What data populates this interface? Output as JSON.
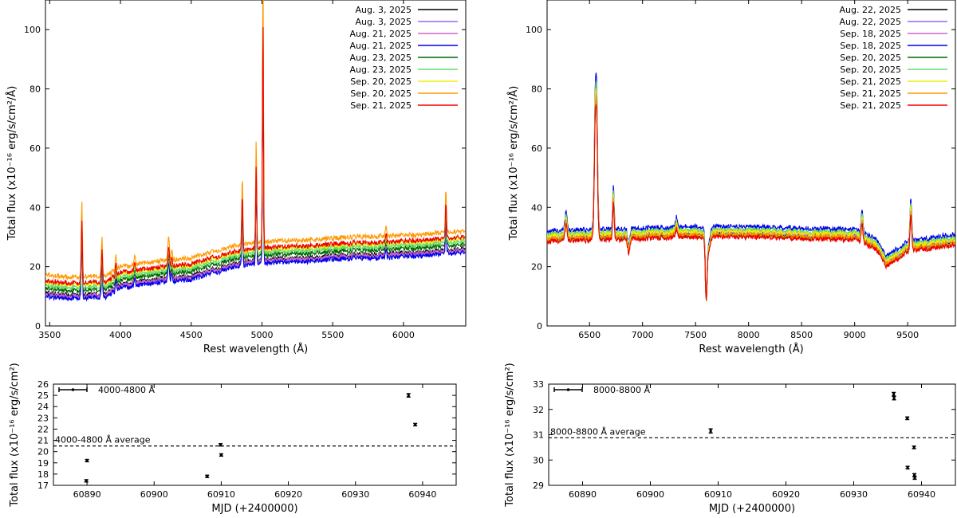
{
  "chart_data": [
    {
      "type": "line",
      "xlabel": "Rest wavelength (Å)",
      "ylabel": "Total flux (x10⁻¹⁶ erg/s/cm²/Å)",
      "xlim": [
        3470,
        6440
      ],
      "ylim": [
        0,
        110
      ],
      "xticks": [
        3500,
        4000,
        4500,
        5000,
        5500,
        6000
      ],
      "yticks": [
        0,
        20,
        40,
        60,
        80,
        100
      ],
      "legend_position": "top-right",
      "continuum": {
        "x": [
          3480,
          3700,
          3900,
          4000,
          4300,
          4500,
          4800,
          5000,
          5300,
          5600,
          6000,
          6300,
          6440
        ],
        "y": [
          11,
          10.5,
          11,
          14,
          16,
          17,
          21,
          22.5,
          23,
          24,
          24.5,
          25.5,
          26
        ]
      },
      "lines": [
        {
          "x": 3727,
          "w": 4,
          "peak": 21
        },
        {
          "x": 3869,
          "w": 4,
          "peak": 11
        },
        {
          "x": 3968,
          "w": 4,
          "peak": 4
        },
        {
          "x": 4102,
          "w": 4,
          "peak": 3
        },
        {
          "x": 4340,
          "w": 5,
          "peak": 7
        },
        {
          "x": 4363,
          "w": 4,
          "peak": 3
        },
        {
          "x": 4861,
          "w": 4,
          "peak": 19
        },
        {
          "x": 4959,
          "w": 3.5,
          "peak": 29
        },
        {
          "x": 5007,
          "w": 3.5,
          "peak": 77
        },
        {
          "x": 5876,
          "w": 4,
          "peak": 3
        },
        {
          "x": 6300,
          "w": 4,
          "peak": 12
        }
      ],
      "series": [
        {
          "name": "Aug. 3, 2025",
          "color": "#000000",
          "offset": 0.0,
          "scale": 1.0
        },
        {
          "name": "Aug. 3, 2025",
          "color": "#9966ff",
          "offset": -0.8,
          "scale": 0.98
        },
        {
          "name": "Aug. 21, 2025",
          "color": "#cc66cc",
          "offset": -0.4,
          "scale": 0.99
        },
        {
          "name": "Aug. 21, 2025",
          "color": "#0000ee",
          "offset": -1.2,
          "scale": 0.97
        },
        {
          "name": "Aug. 23, 2025",
          "color": "#006600",
          "offset": 1.5,
          "scale": 1.02
        },
        {
          "name": "Aug. 23, 2025",
          "color": "#66dd66",
          "offset": 2.5,
          "scale": 1.03
        },
        {
          "name": "Sep. 20, 2025",
          "color": "#eeee00",
          "offset": 3.5,
          "scale": 1.06
        },
        {
          "name": "Sep. 20, 2025",
          "color": "#ff9900",
          "offset": 6.0,
          "scale": 1.2
        },
        {
          "name": "Sep. 21, 2025",
          "color": "#ee0000",
          "offset": 4.0,
          "scale": 0.98
        }
      ]
    },
    {
      "type": "line",
      "xlabel": "Rest wavelength (Å)",
      "ylabel": "Total flux (x10⁻¹⁶ erg/s/cm²/Å)",
      "xlim": [
        6100,
        9950
      ],
      "ylim": [
        0,
        110
      ],
      "xticks": [
        6500,
        7000,
        7500,
        8000,
        8500,
        9000,
        9500
      ],
      "yticks": [
        0,
        20,
        40,
        60,
        80,
        100
      ],
      "legend_position": "top-right",
      "continuum": {
        "x": [
          6100,
          6500,
          7000,
          7400,
          7700,
          8000,
          8500,
          9000,
          9200,
          9300,
          9500,
          9700,
          9950
        ],
        "y": [
          29.5,
          30,
          30.5,
          31,
          31,
          31,
          30.5,
          30,
          27,
          21,
          26,
          27,
          28.5
        ]
      },
      "lines": [
        {
          "x": 6280,
          "w": 10,
          "peak": 6
        },
        {
          "x": 6555,
          "w": 10,
          "peak": 40
        },
        {
          "x": 6570,
          "w": 8,
          "peak": 28
        },
        {
          "x": 6725,
          "w": 7,
          "peak": 13
        },
        {
          "x": 6870,
          "w": 10,
          "peak": -5
        },
        {
          "x": 7320,
          "w": 8,
          "peak": 3
        },
        {
          "x": 7600,
          "w": 8,
          "peak": -21
        },
        {
          "x": 7620,
          "w": 15,
          "peak": -5
        },
        {
          "x": 9069,
          "w": 8,
          "peak": 7
        },
        {
          "x": 9530,
          "w": 8,
          "peak": 13
        }
      ],
      "series": [
        {
          "name": "Aug. 22, 2025",
          "color": "#000000",
          "offset": 0.0,
          "scale": 1.0
        },
        {
          "name": "Aug. 22, 2025",
          "color": "#9966ff",
          "offset": 0.5,
          "scale": 1.02
        },
        {
          "name": "Sep. 18, 2025",
          "color": "#cc66cc",
          "offset": 1.0,
          "scale": 1.04
        },
        {
          "name": "Sep. 18, 2025",
          "color": "#0000ee",
          "offset": 2.5,
          "scale": 1.1
        },
        {
          "name": "Sep. 20, 2025",
          "color": "#006600",
          "offset": -0.5,
          "scale": 0.99
        },
        {
          "name": "Sep. 20, 2025",
          "color": "#66dd66",
          "offset": 1.5,
          "scale": 1.06
        },
        {
          "name": "Sep. 21, 2025",
          "color": "#eeee00",
          "offset": 0.8,
          "scale": 1.03
        },
        {
          "name": "Sep. 21, 2025",
          "color": "#ff9900",
          "offset": -0.2,
          "scale": 1.0
        },
        {
          "name": "Sep. 21, 2025",
          "color": "#ee0000",
          "offset": -1.0,
          "scale": 0.95
        }
      ]
    },
    {
      "type": "scatter",
      "xlabel": "MJD (+2400000)",
      "ylabel": "Total flux (x10⁻¹⁶ erg/s/cm²)",
      "xlim": [
        60885,
        60945
      ],
      "ylim": [
        17,
        26
      ],
      "xticks": [
        60890,
        60900,
        60910,
        60920,
        60930,
        60940
      ],
      "yticks": [
        17,
        18,
        19,
        20,
        21,
        22,
        23,
        24,
        25,
        26
      ],
      "legend_position": "top-left",
      "legend_label": "4000-4800 Å",
      "average_label": "4000-4800 Å average",
      "average": 20.5,
      "points": [
        {
          "x": 60889.9,
          "y": 17.4,
          "err": 0.1
        },
        {
          "x": 60890.0,
          "y": 19.2,
          "err": 0.1
        },
        {
          "x": 60907.9,
          "y": 17.8,
          "err": 0.1
        },
        {
          "x": 60909.9,
          "y": 20.6,
          "err": 0.1
        },
        {
          "x": 60910.0,
          "y": 19.7,
          "err": 0.1
        },
        {
          "x": 60937.9,
          "y": 25.0,
          "err": 0.15
        },
        {
          "x": 60938.9,
          "y": 22.4,
          "err": 0.1
        }
      ]
    },
    {
      "type": "scatter",
      "xlabel": "MJD (+2400000)",
      "ylabel": "Total flux (x10⁻¹⁶ erg/s/cm²)",
      "xlim": [
        60885,
        60945
      ],
      "ylim": [
        29,
        33
      ],
      "xticks": [
        60890,
        60900,
        60910,
        60920,
        60930,
        60940
      ],
      "yticks": [
        29,
        30,
        31,
        32,
        33
      ],
      "legend_position": "top-left",
      "legend_label": "8000-8800 Å",
      "average_label": "8000-8800 Å average",
      "average": 30.88,
      "points": [
        {
          "x": 60908.9,
          "y": 31.15,
          "err": 0.08
        },
        {
          "x": 60935.9,
          "y": 32.6,
          "err": 0.07
        },
        {
          "x": 60935.95,
          "y": 32.45,
          "err": 0.07
        },
        {
          "x": 60937.9,
          "y": 31.65,
          "err": 0.05
        },
        {
          "x": 60937.95,
          "y": 29.7,
          "err": 0.05
        },
        {
          "x": 60938.9,
          "y": 30.5,
          "err": 0.05
        },
        {
          "x": 60938.95,
          "y": 29.4,
          "err": 0.06
        },
        {
          "x": 60939.0,
          "y": 29.3,
          "err": 0.06
        }
      ]
    }
  ]
}
